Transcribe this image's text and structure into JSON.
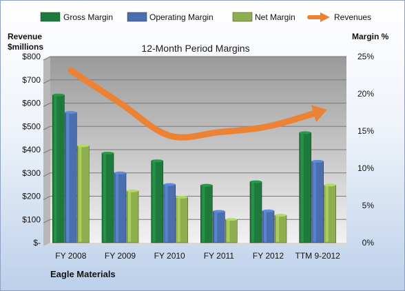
{
  "chart_data": {
    "type": "bar",
    "title": "12-Month Period Margins",
    "footer": "Eagle Materials",
    "left_axis": {
      "label_line1": "Revenue",
      "label_line2": "$millions",
      "ylim": [
        0,
        800
      ],
      "ticks": [
        "$-",
        "$100",
        "$200",
        "$300",
        "$400",
        "$500",
        "$600",
        "$700",
        "$800"
      ]
    },
    "right_axis": {
      "label": "Margin %",
      "ylim": [
        0,
        25
      ],
      "ticks": [
        "0%",
        "5%",
        "10%",
        "15%",
        "20%",
        "25%"
      ]
    },
    "categories": [
      "FY 2008",
      "FY 2009",
      "FY 2010",
      "FY 2011",
      "FY 2012",
      "TTM 9-2012"
    ],
    "series": [
      {
        "name": "Gross Margin",
        "kind": "bar",
        "color": "#1e7a3c",
        "values": [
          635,
          385,
          352,
          247,
          262,
          473
        ]
      },
      {
        "name": "Operating Margin",
        "kind": "bar",
        "color": "#4a6eae",
        "values": [
          560,
          300,
          250,
          135,
          137,
          350
        ]
      },
      {
        "name": "Net Margin",
        "kind": "bar",
        "color": "#8fae4e",
        "values": [
          417,
          223,
          196,
          100,
          118,
          248
        ]
      },
      {
        "name": "Revenues",
        "kind": "line",
        "color": "#ec8233",
        "values": [
          740,
          600,
          460,
          475,
          500,
          560
        ]
      }
    ],
    "legend_position": "top",
    "grid": true,
    "plot_background": [
      "#9a9a9a",
      "#f2f2f2"
    ]
  }
}
